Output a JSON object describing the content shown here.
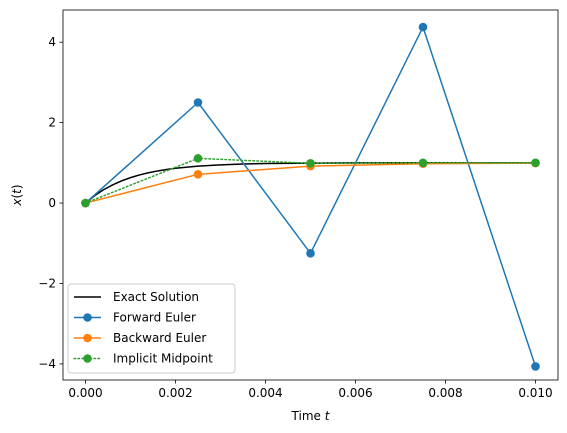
{
  "chart_data": {
    "type": "line",
    "xlabel_text": "Time ",
    "xlabel_var": "t",
    "ylabel_var": "x",
    "ylabel_arg": "t",
    "xlim": [
      -0.0005,
      0.0105
    ],
    "ylim": [
      -4.4,
      4.8
    ],
    "xticks": [
      0.0,
      0.002,
      0.004,
      0.006,
      0.008,
      0.01
    ],
    "xtick_labels": [
      "0.000",
      "0.002",
      "0.004",
      "0.006",
      "0.008",
      "0.010"
    ],
    "yticks": [
      -4,
      -2,
      0,
      2,
      4
    ],
    "ytick_labels": [
      "−4",
      "−2",
      "0",
      "2",
      "4"
    ],
    "grid": false,
    "legend_position": "lower-left",
    "series": [
      {
        "name": "Exact Solution",
        "color": "#000000",
        "style": "solid",
        "marker": false,
        "function": "1 - exp(-1000 t)",
        "x": [
          0.0,
          0.0002,
          0.0004,
          0.0006,
          0.0008,
          0.001,
          0.0012,
          0.0014,
          0.0016,
          0.0018,
          0.002,
          0.0025,
          0.003,
          0.0035,
          0.004,
          0.005,
          0.006,
          0.007,
          0.008,
          0.009,
          0.01
        ],
        "y": [
          0.0,
          0.181,
          0.33,
          0.451,
          0.551,
          0.632,
          0.699,
          0.753,
          0.798,
          0.835,
          0.865,
          0.918,
          0.95,
          0.97,
          0.982,
          0.993,
          0.998,
          0.999,
          1.0,
          1.0,
          1.0
        ]
      },
      {
        "name": "Forward Euler",
        "color": "#1f77b4",
        "style": "solid",
        "marker": true,
        "x": [
          0.0,
          0.0025,
          0.005,
          0.0075,
          0.01
        ],
        "y": [
          0.0,
          2.5,
          -1.25,
          4.375,
          -4.0625
        ]
      },
      {
        "name": "Backward Euler",
        "color": "#ff7f0e",
        "style": "solid",
        "marker": true,
        "x": [
          0.0,
          0.0025,
          0.005,
          0.0075,
          0.01
        ],
        "y": [
          0.0,
          0.714,
          0.918,
          0.977,
          0.993
        ]
      },
      {
        "name": "Implicit Midpoint",
        "color": "#2ca02c",
        "style": "dotted",
        "marker": true,
        "x": [
          0.0,
          0.0025,
          0.005,
          0.0075,
          0.01
        ],
        "y": [
          0.0,
          1.111,
          0.988,
          1.001,
          1.0
        ]
      }
    ]
  }
}
